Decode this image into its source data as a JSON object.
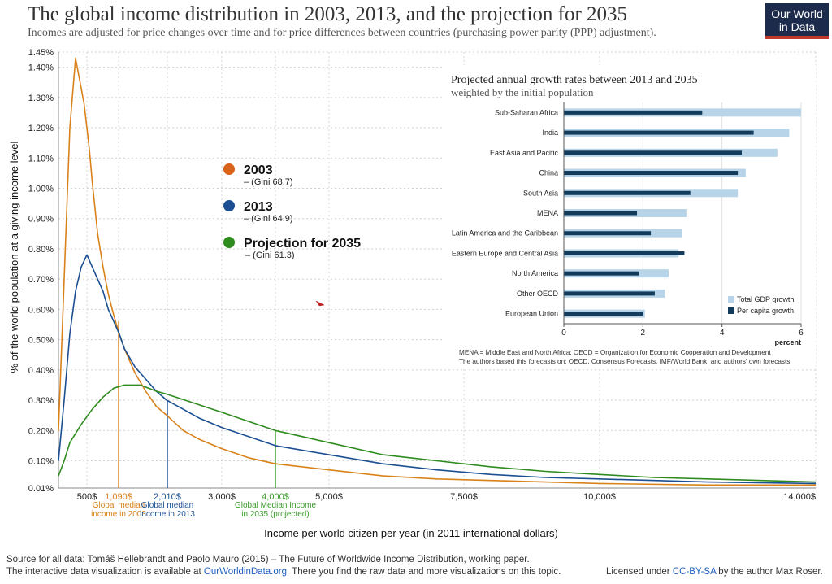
{
  "header": {
    "title": "The global income distribution in 2003, 2013, and the projection for 2035",
    "subtitle": "Incomes are adjusted for price changes over time and for price differences between countries (purchasing power parity (PPP) adjustment).",
    "logo_line1": "Our World",
    "logo_line2": "in Data"
  },
  "chart_data": [
    {
      "type": "line",
      "title": "",
      "xlabel": "Income per world citizen per year (in 2011 international dollars)",
      "ylabel": "% of the world population at a giving income level",
      "xlim": [
        0,
        14000
      ],
      "ylim": [
        0.01,
        1.45
      ],
      "x_ticks": [
        {
          "value": 500,
          "label": "500$",
          "color": "#222222"
        },
        {
          "value": 1090,
          "label": "1,090$",
          "color": "#d9821a"
        },
        {
          "value": 2010,
          "label": "2,010$",
          "color": "#1b4f91"
        },
        {
          "value": 3000,
          "label": "3,000$",
          "color": "#222222"
        },
        {
          "value": 4000,
          "label": "4,000$",
          "color": "#3a9a2a"
        },
        {
          "value": 5000,
          "label": "5,000$",
          "color": "#222222"
        },
        {
          "value": 7500,
          "label": "7,500$",
          "color": "#222222"
        },
        {
          "value": 10000,
          "label": "10,000$",
          "color": "#222222"
        },
        {
          "value": 14000,
          "label": "14,000$",
          "color": "#222222"
        }
      ],
      "y_ticks": [
        "0.01%",
        "0.10%",
        "0.20%",
        "0.30%",
        "0.40%",
        "0.50%",
        "0.60%",
        "0.70%",
        "0.80%",
        "0.90%",
        "1.00%",
        "1.10%",
        "1.20%",
        "1.30%",
        "1.40%",
        "1.45%"
      ],
      "y_tick_values": [
        0.01,
        0.1,
        0.2,
        0.3,
        0.4,
        0.5,
        0.6,
        0.7,
        0.8,
        0.9,
        1.0,
        1.1,
        1.2,
        1.3,
        1.4,
        1.45
      ],
      "grid": true,
      "medians": [
        {
          "value": 1090,
          "label_line1": "Global median",
          "label_line2": "income in 2003",
          "color": "#d9821a"
        },
        {
          "value": 2010,
          "label_line1": "Global median",
          "label_line2": "income in 2013",
          "color": "#1b4f91"
        },
        {
          "value": 4000,
          "label_line1": "Global Median Income",
          "label_line2": "in 2035 (projected)",
          "color": "#3a9a2a"
        }
      ],
      "legend": {
        "placement": "center-left",
        "items": [
          {
            "name": "2003",
            "note": "– (Gini 68.7)",
            "color": "#d9621a"
          },
          {
            "name": "2013",
            "note": "– (Gini 64.9)",
            "color": "#1b4f91"
          },
          {
            "name": "Projection for 2035",
            "note": "– (Gini 61.3)",
            "color": "#2e8b1e"
          }
        ]
      },
      "series": [
        {
          "name": "2003",
          "color": "#d9821a",
          "x": [
            0,
            100,
            200,
            300,
            350,
            400,
            450,
            500,
            550,
            600,
            700,
            800,
            900,
            1000,
            1100,
            1200,
            1400,
            1600,
            1800,
            2000,
            2300,
            2600,
            3000,
            3500,
            4000,
            5000,
            6000,
            7000,
            8000,
            9000,
            10000,
            12000,
            14000
          ],
          "y": [
            0.2,
            0.7,
            1.2,
            1.43,
            1.38,
            1.33,
            1.28,
            1.2,
            1.12,
            1.02,
            0.85,
            0.74,
            0.65,
            0.58,
            0.52,
            0.47,
            0.39,
            0.33,
            0.28,
            0.25,
            0.2,
            0.17,
            0.14,
            0.11,
            0.09,
            0.07,
            0.05,
            0.04,
            0.035,
            0.03,
            0.025,
            0.02,
            0.02
          ]
        },
        {
          "name": "2013",
          "color": "#1b4f91",
          "x": [
            0,
            100,
            200,
            300,
            400,
            500,
            600,
            700,
            800,
            900,
            1000,
            1100,
            1200,
            1400,
            1600,
            1800,
            2000,
            2300,
            2600,
            3000,
            3500,
            4000,
            5000,
            6000,
            7000,
            8000,
            9000,
            10000,
            12000,
            14000
          ],
          "y": [
            0.1,
            0.3,
            0.52,
            0.66,
            0.74,
            0.78,
            0.74,
            0.7,
            0.66,
            0.6,
            0.56,
            0.52,
            0.47,
            0.41,
            0.37,
            0.33,
            0.3,
            0.27,
            0.24,
            0.21,
            0.18,
            0.15,
            0.12,
            0.09,
            0.07,
            0.055,
            0.045,
            0.04,
            0.03,
            0.025
          ]
        },
        {
          "name": "Projection for 2035",
          "color": "#2e8b1e",
          "x": [
            0,
            100,
            200,
            400,
            600,
            800,
            1000,
            1200,
            1500,
            1800,
            2000,
            2500,
            3000,
            3500,
            4000,
            5000,
            6000,
            7000,
            8000,
            9000,
            10000,
            11000,
            12000,
            13000,
            14000
          ],
          "y": [
            0.05,
            0.1,
            0.16,
            0.22,
            0.27,
            0.31,
            0.34,
            0.35,
            0.35,
            0.33,
            0.32,
            0.29,
            0.26,
            0.23,
            0.2,
            0.16,
            0.12,
            0.1,
            0.08,
            0.065,
            0.055,
            0.045,
            0.04,
            0.035,
            0.03
          ]
        }
      ]
    },
    {
      "type": "bar",
      "orientation": "horizontal",
      "title": "Projected annual growth rates between 2013 and 2035",
      "subtitle": "weighted by the initial population",
      "xlabel": "percent",
      "xlim": [
        0,
        6
      ],
      "x_ticks": [
        "0",
        "2",
        "4",
        "6"
      ],
      "x_tick_values": [
        0,
        2,
        4,
        6
      ],
      "categories": [
        "Sub-Saharan Africa",
        "India",
        "East Asia and Pacific",
        "China",
        "South Asia",
        "MENA",
        "Latin America and the Caribbean",
        "Eastern Europe and Central Asia",
        "North America",
        "Other OECD",
        "European Union"
      ],
      "series": [
        {
          "name": "Total GDP growth",
          "color": "#b8d4e8",
          "values": [
            6.0,
            5.7,
            5.4,
            4.6,
            4.4,
            3.1,
            3.0,
            2.9,
            2.65,
            2.55,
            2.05
          ]
        },
        {
          "name": "Per capita growth",
          "color": "#123b5c",
          "values": [
            3.5,
            4.8,
            4.5,
            4.4,
            3.2,
            1.85,
            2.2,
            3.05,
            1.9,
            2.3,
            2.0
          ]
        }
      ],
      "legend_placement": "bottom-right",
      "notes": [
        "MENA = Middle East and North Africa; OECD = Organization for Economic Cooperation and Development",
        "The authors based this forecasts on: OECD, Consensus Forecasts, IMF/World Bank, and authors' own forecasts."
      ]
    }
  ],
  "footer": {
    "source": "Source for all data: Tomáš Hellebrandt and Paolo Mauro (2015) – The Future of Worldwide Income Distribution, working paper.",
    "interactive_prefix": "The interactive data visualization is available at ",
    "interactive_link": "OurWorldinData.org",
    "interactive_suffix": ". There you find the raw data and more visualizations on this topic.",
    "license_prefix": "Licensed under ",
    "license_link": "CC-BY-SA",
    "license_suffix": " by the author Max Roser."
  },
  "colors": {
    "accent_2003": "#d9821a",
    "accent_2013": "#1b4f91",
    "accent_2035": "#2e8b1e"
  }
}
